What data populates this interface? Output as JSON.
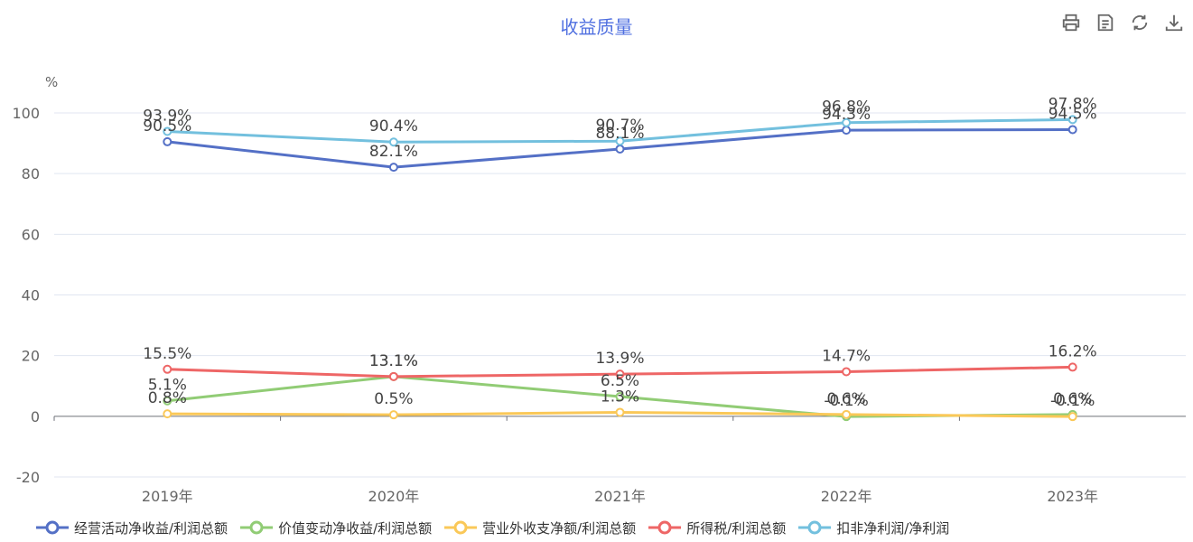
{
  "toolbar": {
    "icons": [
      "print-icon",
      "data-view-icon",
      "restore-icon",
      "download-icon"
    ]
  },
  "chart_data": {
    "type": "line",
    "title": "收益质量",
    "ylabel": "%",
    "ylim": [
      -20,
      110
    ],
    "yticks": [
      -20,
      0,
      20,
      40,
      60,
      80,
      100
    ],
    "categories": [
      "2019年",
      "2020年",
      "2021年",
      "2022年",
      "2023年"
    ],
    "grid": true,
    "legend_position": "bottom",
    "series": [
      {
        "name": "经营活动净收益/利润总额",
        "color": "#5470c6",
        "values": [
          90.5,
          82.1,
          88.1,
          94.3,
          94.5
        ],
        "labels": [
          "90.5%",
          "82.1%",
          "88.1%",
          "94.3%",
          "94.5%"
        ]
      },
      {
        "name": "价值变动净收益/利润总额",
        "color": "#91cc75",
        "values": [
          5.1,
          13.1,
          6.5,
          -0.1,
          0.6
        ],
        "labels": [
          "5.1%",
          "13.1%",
          "6.5%",
          "-0.1%",
          "0.6%"
        ]
      },
      {
        "name": "营业外收支净额/利润总额",
        "color": "#fac858",
        "values": [
          0.8,
          0.5,
          1.3,
          0.6,
          -0.1
        ],
        "labels": [
          "0.8%",
          "0.5%",
          "1.3%",
          "0.6%",
          "-0.1%"
        ]
      },
      {
        "name": "所得税/利润总额",
        "color": "#ee6666",
        "values": [
          15.5,
          13.1,
          13.9,
          14.7,
          16.2
        ],
        "labels": [
          "15.5%",
          "13.1%",
          "13.9%",
          "14.7%",
          "16.2%"
        ]
      },
      {
        "name": "扣非净利润/净利润",
        "color": "#73c0de",
        "values": [
          93.9,
          90.4,
          90.7,
          96.8,
          97.8
        ],
        "labels": [
          "93.9%",
          "90.4%",
          "90.7%",
          "96.8%",
          "97.8%"
        ]
      }
    ]
  }
}
